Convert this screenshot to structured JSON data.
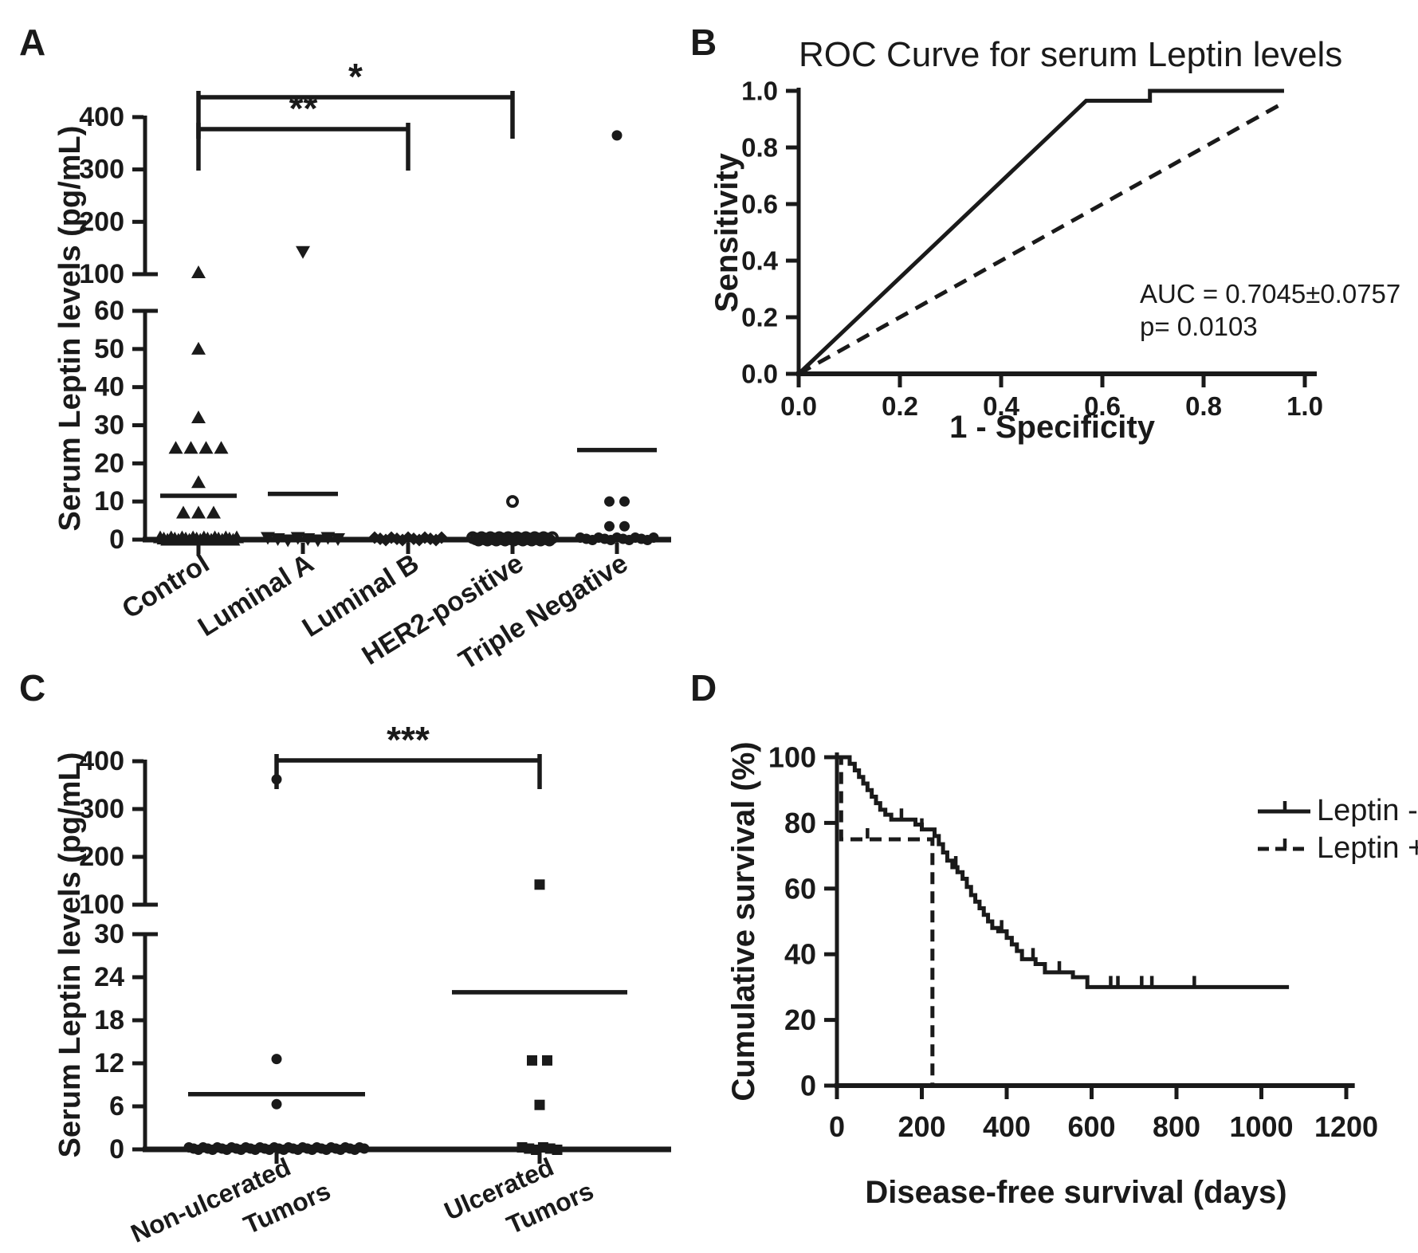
{
  "panels": {
    "A": {
      "label": "A",
      "ylabel": "Serum Leptin levels (pg/mL)",
      "upper_ticks": [
        100,
        200,
        300,
        400
      ],
      "lower_ticks": [
        0,
        10,
        20,
        30,
        40,
        50,
        60
      ],
      "chart_type": "scatter-column",
      "categories": [
        {
          "label_lines": [
            "Control"
          ],
          "marker": "triangle-up",
          "values": [
            103,
            50,
            32,
            24,
            24,
            24,
            24,
            15,
            7,
            7,
            7
          ],
          "zeros": 22,
          "mean_line": 11.5
        },
        {
          "label_lines": [
            "Luminal A"
          ],
          "marker": "triangle-down",
          "values": [
            143
          ],
          "zeros": 8,
          "mean_line": 12
        },
        {
          "label_lines": [
            "Luminal B"
          ],
          "marker": "diamond",
          "values": [],
          "zeros": 13,
          "mean_line": null
        },
        {
          "label_lines": [
            "HER2-positive"
          ],
          "marker": "circle-open",
          "values": [
            10
          ],
          "zeros": 28,
          "mean_line": null
        },
        {
          "label_lines": [
            "Triple Negative"
          ],
          "marker": "circle",
          "values": [
            365,
            10,
            10,
            3.5,
            3.5
          ],
          "zeros": 13,
          "mean_line": 23.5
        }
      ],
      "significance": [
        {
          "text": "*",
          "from": 0,
          "to": 3
        },
        {
          "text": "**",
          "from": 0,
          "to": 2
        }
      ]
    },
    "B": {
      "label": "B",
      "title": "ROC Curve for serum Leptin levels",
      "ylabel": "Sensitivity",
      "xlabel": "1 - Specificity",
      "chart_type": "line",
      "x_ticks": [
        "0.0",
        "0.2",
        "0.4",
        "0.6",
        "0.8",
        "1.0"
      ],
      "y_ticks": [
        "0.0",
        "0.2",
        "0.4",
        "0.6",
        "0.8",
        "1.0"
      ],
      "annotation_line1": "AUC = 0.7045±0.0757",
      "annotation_line2": "p= 0.0103",
      "roc_curve": [
        [
          0,
          0
        ],
        [
          0.568,
          0.965
        ],
        [
          0.694,
          0.965
        ],
        [
          0.694,
          1.0
        ],
        [
          0.959,
          1.0
        ]
      ],
      "reference_line": [
        [
          0,
          0
        ],
        [
          0.959,
          0.959
        ]
      ]
    },
    "C": {
      "label": "C",
      "ylabel": "Serum Leptin levels (pg/mL)",
      "upper_ticks": [
        100,
        200,
        300,
        400
      ],
      "lower_ticks": [
        0,
        6,
        12,
        18,
        24,
        30
      ],
      "chart_type": "scatter-column",
      "categories": [
        {
          "label_lines": [
            "Non-ulcerated",
            "Tumors"
          ],
          "marker": "circle",
          "values": [
            362,
            12.6,
            6.3
          ],
          "zeros": 38,
          "mean_line": 7.7
        },
        {
          "label_lines": [
            "Ulcerated",
            "Tumors"
          ],
          "marker": "square",
          "values": [
            142,
            12.4,
            12.4,
            6.2
          ],
          "zeros": 6,
          "mean_line": 21.9
        }
      ],
      "significance": [
        {
          "text": "***",
          "from": 0,
          "to": 1
        }
      ]
    },
    "D": {
      "label": "D",
      "ylabel": "Cumulative survival (%)",
      "xlabel": "Disease-free survival (days)",
      "chart_type": "km-step",
      "x_ticks": [
        0,
        200,
        400,
        600,
        800,
        1000,
        1200
      ],
      "y_ticks": [
        0,
        20,
        40,
        60,
        80,
        100
      ],
      "series": [
        {
          "name": "Leptin -",
          "style": "solid",
          "steps": [
            [
              0,
              100
            ],
            [
              30,
              100
            ],
            [
              30,
              98
            ],
            [
              42,
              98
            ],
            [
              42,
              96
            ],
            [
              52,
              96
            ],
            [
              52,
              94
            ],
            [
              62,
              94
            ],
            [
              62,
              92
            ],
            [
              72,
              92
            ],
            [
              72,
              90
            ],
            [
              82,
              90
            ],
            [
              82,
              88
            ],
            [
              92,
              88
            ],
            [
              92,
              86
            ],
            [
              102,
              86
            ],
            [
              102,
              84
            ],
            [
              114,
              84
            ],
            [
              114,
              82.5
            ],
            [
              128,
              82.5
            ],
            [
              128,
              81
            ],
            [
              185,
              81
            ],
            [
              185,
              79.5
            ],
            [
              200,
              79.5
            ],
            [
              200,
              78
            ],
            [
              230,
              78
            ],
            [
              230,
              76
            ],
            [
              240,
              76
            ],
            [
              240,
              73.5
            ],
            [
              250,
              73.5
            ],
            [
              250,
              71
            ],
            [
              260,
              71
            ],
            [
              260,
              68.5
            ],
            [
              272,
              68.5
            ],
            [
              272,
              66.5
            ],
            [
              284,
              66.5
            ],
            [
              284,
              65
            ],
            [
              296,
              65
            ],
            [
              296,
              63
            ],
            [
              306,
              63
            ],
            [
              306,
              60.5
            ],
            [
              316,
              60.5
            ],
            [
              316,
              58
            ],
            [
              326,
              58
            ],
            [
              326,
              56
            ],
            [
              336,
              56
            ],
            [
              336,
              54
            ],
            [
              346,
              54
            ],
            [
              346,
              52
            ],
            [
              356,
              52
            ],
            [
              356,
              50
            ],
            [
              366,
              50
            ],
            [
              366,
              48
            ],
            [
              380,
              48
            ],
            [
              380,
              47
            ],
            [
              400,
              47
            ],
            [
              400,
              45
            ],
            [
              412,
              45
            ],
            [
              412,
              43
            ],
            [
              424,
              43
            ],
            [
              424,
              41
            ],
            [
              436,
              41
            ],
            [
              436,
              38.5
            ],
            [
              468,
              38.5
            ],
            [
              468,
              37
            ],
            [
              490,
              37
            ],
            [
              490,
              34.5
            ],
            [
              556,
              34.5
            ],
            [
              556,
              33
            ],
            [
              590,
              33
            ],
            [
              590,
              30
            ],
            [
              1065,
              30
            ]
          ],
          "censor_days": [
            152,
            200,
            280,
            388,
            462,
            524,
            645,
            662,
            718,
            742,
            842
          ]
        },
        {
          "name": "Leptin +",
          "style": "dashed",
          "steps": [
            [
              0,
              100
            ],
            [
              10,
              100
            ],
            [
              10,
              75
            ],
            [
              225,
              75
            ],
            [
              225,
              0
            ]
          ],
          "censor_days": [
            72
          ]
        }
      ]
    }
  }
}
